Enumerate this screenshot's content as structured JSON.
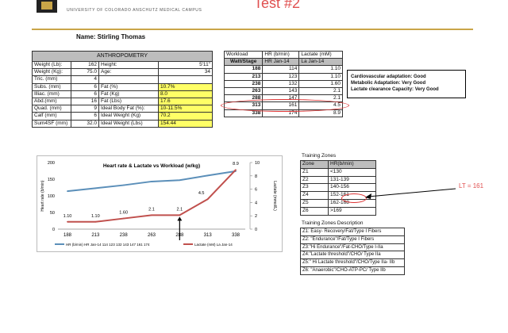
{
  "header": {
    "university": "UNIVERSITY OF COLORADO ANSCHUTZ MEDICAL CAMPUS",
    "test_label": "Test #2",
    "name": "Name: Stirling Thomas"
  },
  "anthro": {
    "title": "ANTHROPOMETRY",
    "rows": [
      [
        "Weight (Lb):",
        "162",
        "Height:",
        "5'11\"",
        ""
      ],
      [
        "Weight (Kg):",
        "75.0",
        "Age:",
        "34",
        ""
      ],
      [
        "Tric. (mm)",
        "4",
        "",
        "",
        ""
      ],
      [
        "Subs. (mm)",
        "6",
        "Fat (%)",
        "10.7%",
        "yel"
      ],
      [
        "Illiac. (mm)",
        "6",
        "Fat (Kg)",
        "8.0",
        "yel"
      ],
      [
        "Abd.(mm)",
        "16",
        "Fat (Lbs)",
        "17.6",
        "yel"
      ],
      [
        "Quad. (mm)",
        "9",
        "Ideal Body Fat (%):",
        "10-11.5%",
        "yel"
      ],
      [
        "Calf (mm)",
        "6",
        "Ideal Weight (Kg)",
        "70.2",
        "yel"
      ],
      [
        "Sum4SF (mm)",
        "32.0",
        "Ideal Weight (Lbs)",
        "154.44",
        "yel"
      ]
    ]
  },
  "workload": {
    "headers": [
      "Workload",
      "HR (b/min)",
      "Lactate (mM)"
    ],
    "subheaders": [
      "Watt/Stage",
      "HR Jan-14",
      "La Jan-14"
    ],
    "rows": [
      [
        "188",
        "114",
        "1.10"
      ],
      [
        "213",
        "123",
        "1.10"
      ],
      [
        "238",
        "132",
        "1.60"
      ],
      [
        "263",
        "143",
        "2.1"
      ],
      [
        "288",
        "147",
        "2.1"
      ],
      [
        "313",
        "161",
        "4.5"
      ],
      [
        "338",
        "174",
        "8.9"
      ]
    ]
  },
  "adaptation": [
    "Cardiovascular adaptation: Good",
    "Metabolic Adaptation: Very Good",
    "Lactate clearance Capacity: Very Good"
  ],
  "chart_data": {
    "type": "line",
    "title": "Heart rate & Lactate vs Workload (w/kg)",
    "ylabel": "Heart rate (b/min)",
    "y2label": "Lactate (mmol/L)",
    "categories": [
      "188",
      "213",
      "238",
      "263",
      "288",
      "313",
      "338"
    ],
    "ylim": [
      0,
      200
    ],
    "y2lim": [
      0,
      10
    ],
    "yticks": [
      "0",
      "50",
      "100",
      "150",
      "200"
    ],
    "y2ticks": [
      "0",
      "2",
      "4",
      "6",
      "8",
      "10"
    ],
    "series": [
      {
        "name": "HR (b/min) HR Jan-14 114 123 132 143 147 161 174",
        "axis": "left",
        "color": "#5b8fb9",
        "values": [
          114,
          123,
          132,
          143,
          147,
          161,
          174
        ]
      },
      {
        "name": "Lactate (mM) La Jan-14",
        "axis": "right",
        "color": "#c0504d",
        "values": [
          1.1,
          1.1,
          1.6,
          2.1,
          2.1,
          4.5,
          8.9
        ],
        "labels": [
          "1.10",
          "1.10",
          "1.60",
          "2.1",
          "2.1",
          "4.5",
          "8.9"
        ]
      }
    ],
    "legend": "bottom"
  },
  "zones": {
    "title": "Training Zones",
    "headers": [
      "Zone",
      "HR(b/min)"
    ],
    "rows": [
      [
        "Z1",
        "<130"
      ],
      [
        "Z2",
        "131-139"
      ],
      [
        "Z3",
        "140-156"
      ],
      [
        "Z4",
        "152-161"
      ],
      [
        "Z5",
        "162-168"
      ],
      [
        "Z6",
        ">169"
      ]
    ],
    "lt_annotation": "LT = 161"
  },
  "zone_desc": {
    "title": "Training Zones Description",
    "rows": [
      "Z1: Easy- Recovery/Fat/Type I Fibers",
      "Z2: \"Endurance\"/Fat/Type I Fibers",
      "Z3:\"Hi Endurance\"/Fat-CHO/Type I-IIa",
      "Z4:\"Lactate threshold\"/CHO/ Type IIa",
      "Z5:\" Hi Lactate threshold\"/CHO/Type IIa- IIb",
      "Z6: \"Anaerobic\"/CHO-ATP-PC/ Type IIb"
    ]
  }
}
